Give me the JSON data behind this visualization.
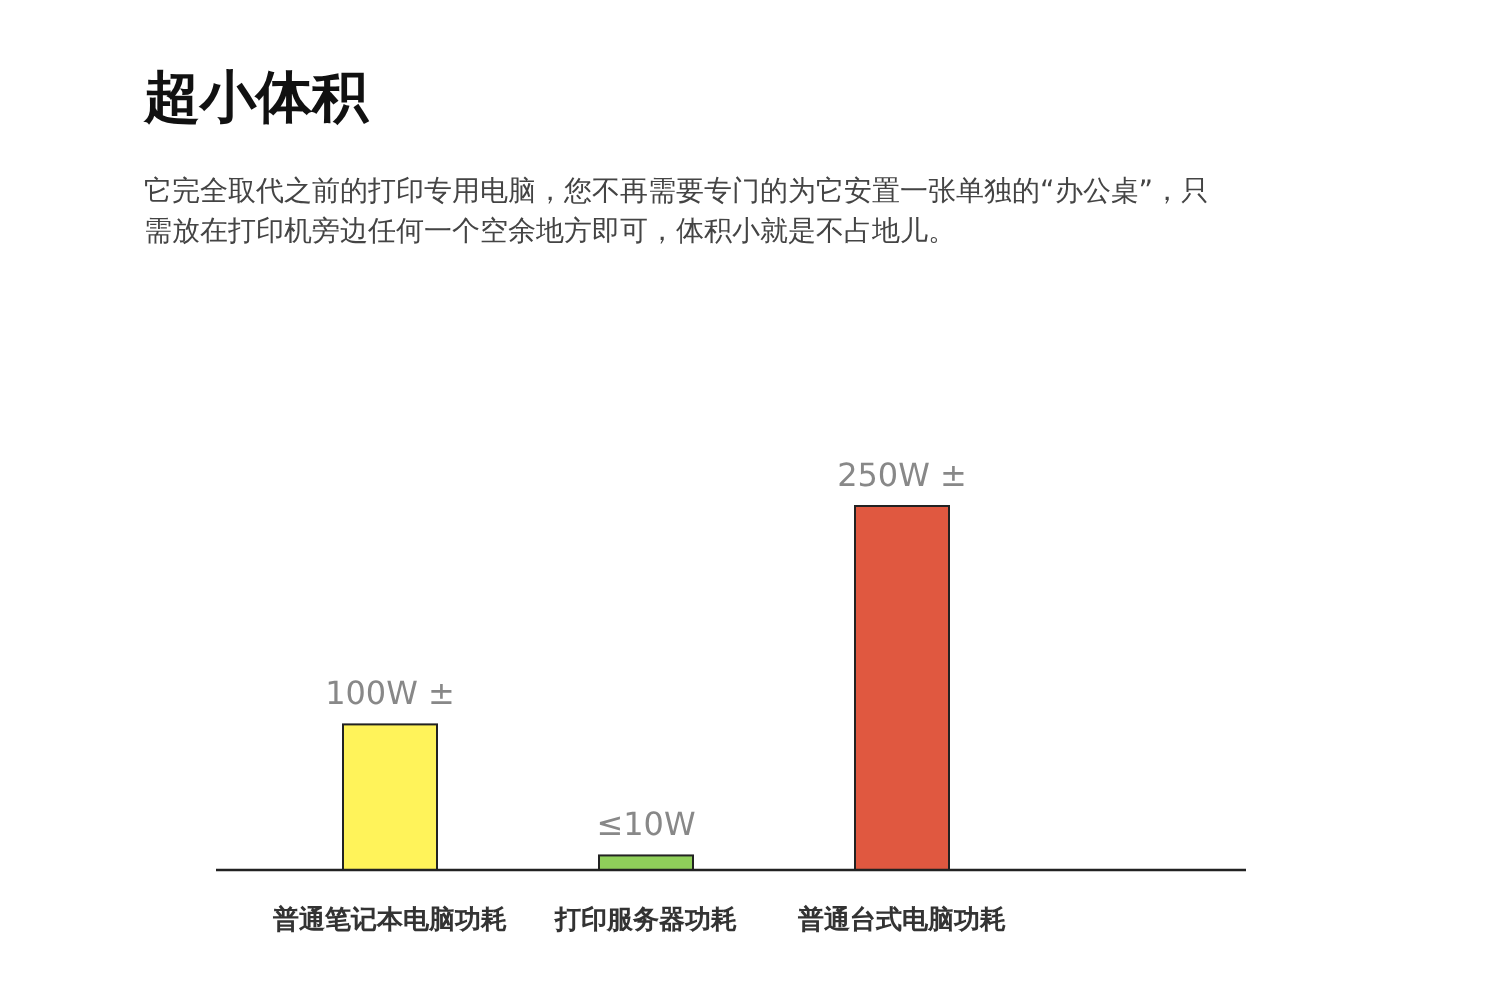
{
  "chart_data": {
    "type": "bar",
    "title": "超小体积",
    "subtitle": "它完全取代之前的打印专用电脑，您不再需要专门的为它安置一张单独的“办公桌”，只需放在打印机旁边任何一个空余地方即可，体积小就是不占地儿。",
    "categories": [
      "普通笔记本电脑功耗",
      "打印服务器功耗",
      "普通台式电脑功耗"
    ],
    "values": [
      100,
      10,
      250
    ],
    "colors": [
      "#fff35a",
      "#8fcf5a",
      "#e05840"
    ],
    "value_labels": [
      "100W ±",
      "≤10W",
      "250W ±"
    ]
  }
}
